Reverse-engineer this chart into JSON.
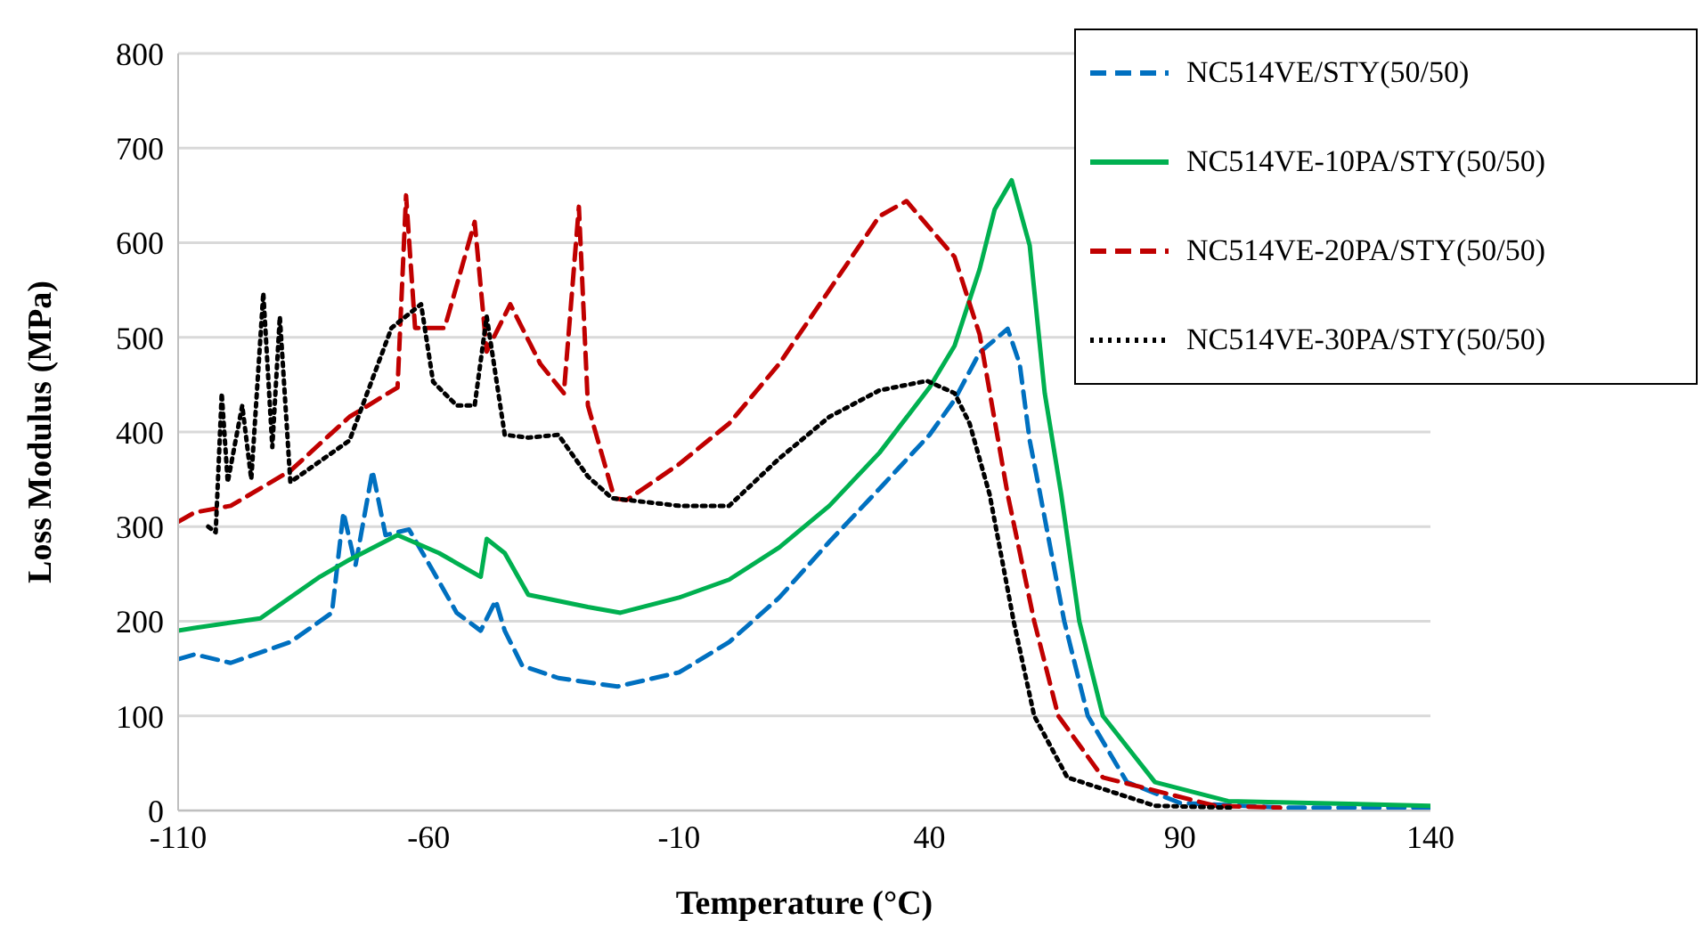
{
  "chart_data": {
    "type": "line",
    "xlabel": "Temperature (°C)",
    "ylabel": "Loss Modulus (MPa)",
    "xlim": [
      -110,
      140
    ],
    "xticks": [
      -110,
      -60,
      -10,
      40,
      90,
      140
    ],
    "ylim": [
      0,
      800
    ],
    "yticks": [
      0,
      100,
      200,
      300,
      400,
      500,
      600,
      700,
      800
    ],
    "grid": "y",
    "legend": "top right",
    "marker": "none",
    "series": [
      {
        "name": "NC514VE/STY(50/50)",
        "color": "#0070c0",
        "line_style": "dashed",
        "x": [
          -110,
          -106.7,
          -99.5,
          -87.6,
          -79.3,
          -77,
          -74.6,
          -71.2,
          -68.6,
          -63.9,
          -59.1,
          -54.4,
          -49.6,
          -46.6,
          -44.8,
          -41.3,
          -34.1,
          -22.3,
          -10,
          0,
          10,
          20,
          30,
          40,
          45,
          50,
          55.6,
          58,
          60,
          62.1,
          66.9,
          71.6,
          79.4,
          90,
          111,
          140
        ],
        "values": [
          160,
          165,
          156,
          178,
          209,
          315,
          259,
          359,
          291,
          297,
          253,
          209,
          190,
          222,
          190,
          153,
          140,
          131,
          146,
          178,
          225,
          284,
          340,
          397,
          434,
          484,
          509,
          472,
          391,
          334,
          200,
          100,
          30,
          8,
          3,
          3
        ]
      },
      {
        "name": "NC514VE-10PA/STY(50/50)",
        "color": "#00b050",
        "line_style": "solid",
        "x": [
          -110,
          -106.7,
          -93.6,
          -81.7,
          -75.8,
          -66.2,
          -57.9,
          -49.6,
          -48.4,
          -44.8,
          -40.1,
          -28.2,
          -21.7,
          -10,
          0,
          10,
          20,
          30,
          40,
          45,
          50,
          53,
          56.4,
          60,
          63,
          66.3,
          69.9,
          74.6,
          85,
          99.6,
          140
        ],
        "values": [
          190,
          193,
          203,
          247,
          265,
          291,
          272,
          247,
          287,
          272,
          228,
          215,
          209,
          225,
          244,
          278,
          322,
          378,
          447,
          491,
          572,
          635,
          666,
          597,
          441,
          334,
          200,
          100,
          30,
          10,
          5
        ]
      },
      {
        "name": "NC514VE-20PA/STY(50/50)",
        "color": "#c00000",
        "line_style": "dashed",
        "x": [
          -110,
          -106.7,
          -99.5,
          -87.6,
          -75.8,
          -66.2,
          -64.5,
          -62.7,
          -56.8,
          -50.8,
          -48.4,
          -43.7,
          -37.7,
          -33,
          -30,
          -28.2,
          -22.9,
          -20.5,
          -10,
          0,
          10,
          20,
          30,
          35.4,
          45,
          50,
          55.6,
          60.9,
          65.7,
          74.6,
          97,
          110
        ],
        "values": [
          305,
          315,
          322,
          359,
          416,
          447,
          650,
          510,
          510,
          622,
          485,
          535,
          472,
          441,
          638,
          428,
          330,
          328,
          366,
          409,
          472,
          550,
          628,
          644,
          585,
          503,
          334,
          200,
          100,
          35,
          5,
          3
        ]
      },
      {
        "name": "NC514VE-30PA/STY(50/50)",
        "color": "#000000",
        "line_style": "dotted",
        "x": [
          -104,
          -102.5,
          -101.3,
          -100.1,
          -97.2,
          -95.4,
          -93,
          -91.2,
          -89.7,
          -87.6,
          -75.8,
          -67.4,
          -61.5,
          -59.1,
          -54.4,
          -50.8,
          -48.4,
          -44.8,
          -40.1,
          -34.1,
          -28.2,
          -23.4,
          -10,
          0,
          10,
          20,
          30,
          39.5,
          45,
          48,
          52,
          56.8,
          60.9,
          67.5,
          85,
          100
        ],
        "values": [
          300,
          294,
          441,
          347,
          428,
          350,
          547,
          384,
          522,
          347,
          391,
          510,
          535,
          453,
          428,
          428,
          522,
          397,
          394,
          397,
          353,
          330,
          322,
          322,
          372,
          416,
          444,
          454,
          441,
          409,
          334,
          200,
          100,
          35,
          5,
          3
        ]
      }
    ]
  }
}
